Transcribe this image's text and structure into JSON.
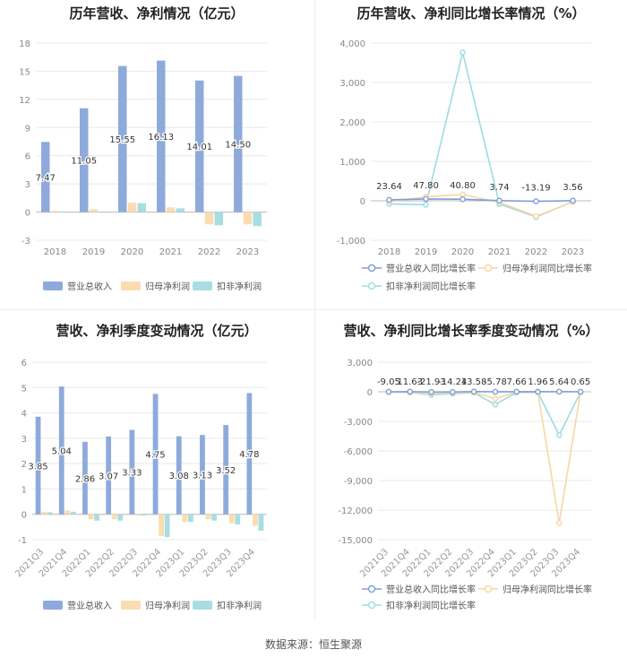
{
  "source": "数据来源：恒生聚源",
  "chart_data": [
    {
      "type": "bar",
      "title": "历年营收、净利情况（亿元）",
      "categories": [
        "2018",
        "2019",
        "2020",
        "2021",
        "2022",
        "2023"
      ],
      "ylim": [
        -3,
        18
      ],
      "yticks": [
        -3,
        0,
        3,
        6,
        9,
        12,
        15,
        18
      ],
      "grid": true,
      "legend_position": "bottom",
      "series": [
        {
          "name": "营业总收入",
          "color": "#8eaadb",
          "values": [
            7.47,
            11.05,
            15.55,
            16.13,
            14.01,
            14.5
          ],
          "labels": [
            "7.47",
            "11.05",
            "15.55",
            "16.13",
            "14.01",
            "14.50"
          ]
        },
        {
          "name": "归母净利润",
          "color": "#fbdcb0",
          "values": [
            0.1,
            0.3,
            1.0,
            0.5,
            -1.3,
            -1.3
          ]
        },
        {
          "name": "扣非净利润",
          "color": "#a8dde2",
          "values": [
            0.05,
            0.05,
            0.95,
            0.4,
            -1.4,
            -1.5
          ]
        }
      ]
    },
    {
      "type": "line",
      "title": "历年营收、净利同比增长率情况（%）",
      "categories": [
        "2018",
        "2019",
        "2020",
        "2021",
        "2022",
        "2023"
      ],
      "ylim": [
        -1000,
        4000
      ],
      "yticks": [
        -1000,
        0,
        1000,
        2000,
        3000,
        4000
      ],
      "ytick_labels": [
        "-1,000",
        "0",
        "1,000",
        "2,000",
        "3,000",
        "4,000"
      ],
      "grid": true,
      "legend_position": "bottom",
      "series": [
        {
          "name": "营业总收入同比增长率",
          "color": "#7f9fd6",
          "values": [
            23.64,
            47.8,
            40.8,
            3.74,
            -13.19,
            3.56
          ],
          "labels": [
            "23.64",
            "47.80",
            "40.80",
            "3.74",
            "-13.19",
            "3.56"
          ]
        },
        {
          "name": "归母净利润同比增长率",
          "color": "#f9d6a3",
          "values": [
            -20,
            100,
            160,
            -40,
            -390,
            -30
          ]
        },
        {
          "name": "扣非净利润同比增长率",
          "color": "#9bdde2",
          "values": [
            -80,
            -100,
            3760,
            -80,
            -410,
            -20
          ]
        }
      ]
    },
    {
      "type": "bar",
      "title": "营收、净利季度变动情况（亿元）",
      "categories": [
        "2021Q3",
        "2021Q4",
        "2022Q1",
        "2022Q2",
        "2022Q3",
        "2022Q4",
        "2023Q1",
        "2023Q2",
        "2023Q3",
        "2023Q4"
      ],
      "ylim": [
        -1,
        6
      ],
      "yticks": [
        -1,
        0,
        1,
        2,
        3,
        4,
        5,
        6
      ],
      "grid": true,
      "legend_position": "bottom",
      "series": [
        {
          "name": "营业总收入",
          "color": "#8eaadb",
          "values": [
            3.85,
            5.04,
            2.86,
            3.07,
            3.33,
            4.75,
            3.08,
            3.13,
            3.52,
            4.78
          ],
          "labels": [
            "3.85",
            "5.04",
            "2.86",
            "3.07",
            "3.33",
            "4.75",
            "3.08",
            "3.13",
            "3.52",
            "4.78"
          ]
        },
        {
          "name": "归母净利润",
          "color": "#fbdcb0",
          "values": [
            0.1,
            0.15,
            -0.2,
            -0.2,
            -0.05,
            -0.85,
            -0.3,
            -0.2,
            -0.35,
            -0.45
          ]
        },
        {
          "name": "扣非净利润",
          "color": "#a8dde2",
          "values": [
            0.08,
            0.1,
            -0.25,
            -0.25,
            -0.05,
            -0.9,
            -0.3,
            -0.25,
            -0.4,
            -0.65
          ]
        }
      ]
    },
    {
      "type": "line",
      "title": "营收、净利同比增长率季度变动情况（%）",
      "categories": [
        "2021Q3",
        "2021Q4",
        "2022Q1",
        "2022Q2",
        "2022Q3",
        "2022Q4",
        "2023Q1",
        "2023Q2",
        "2023Q3",
        "2023Q4"
      ],
      "ylim": [
        -15000,
        3000
      ],
      "yticks": [
        -15000,
        -12000,
        -9000,
        -6000,
        -3000,
        0,
        3000
      ],
      "ytick_labels": [
        "-15,000",
        "-12,000",
        "-9,000",
        "-6,000",
        "-3,000",
        "0",
        "3,000"
      ],
      "grid": true,
      "legend_position": "bottom",
      "series": [
        {
          "name": "营业总收入同比增长率",
          "color": "#7f9fd6",
          "values": [
            -9.05,
            11.63,
            -21.93,
            -14.24,
            13.58,
            -5.78,
            7.66,
            1.96,
            5.64,
            0.65
          ],
          "labels": [
            "-9.05",
            "11.63",
            "-21.93",
            "-14.24",
            "13.58",
            "-5.78",
            "7.66",
            "1.96",
            "5.64",
            "0.65"
          ]
        },
        {
          "name": "归母净利润同比增长率",
          "color": "#f9d6a3",
          "values": [
            -20,
            -60,
            -150,
            -100,
            -60,
            -700,
            -30,
            -50,
            -13300,
            -40
          ]
        },
        {
          "name": "扣非净利润同比增长率",
          "color": "#9bdde2",
          "values": [
            -30,
            -80,
            -300,
            -200,
            -100,
            -1300,
            -80,
            -60,
            -4400,
            -50
          ]
        }
      ]
    }
  ]
}
